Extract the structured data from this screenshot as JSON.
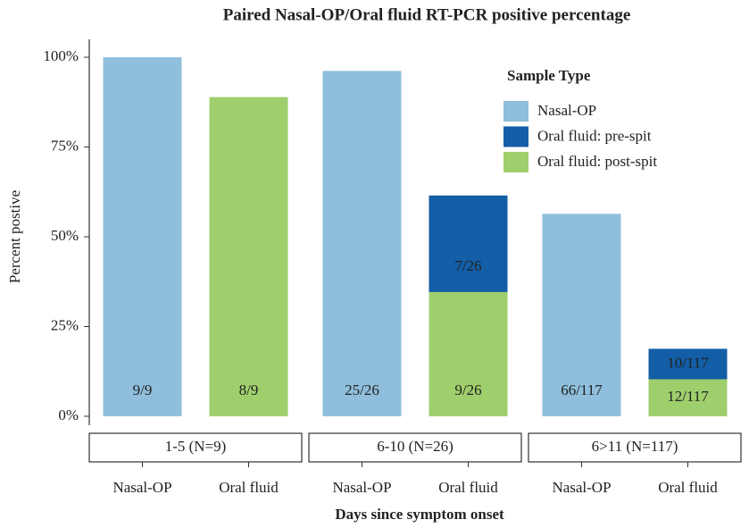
{
  "chart_data": {
    "type": "stacked_bar",
    "title": "Paired Nasal-OP/Oral fluid RT-PCR positive percentage",
    "y_label": "Percent postive",
    "x_label": "Days since symptom onset",
    "facets": [
      "1-5 (N=9)",
      "6-10 (N=26)",
      "6>11 (N=117)"
    ],
    "categories": [
      "Nasal-OP",
      "Oral fluid",
      "Nasal-OP",
      "Oral fluid",
      "Nasal-OP",
      "Oral fluid"
    ],
    "legend_title": "Sample Type",
    "legend": "top-right",
    "series": [
      {
        "name": "Nasal-OP",
        "color": "#8fbfdc",
        "values": [
          100,
          null,
          96.2,
          null,
          56.4,
          null
        ],
        "value_labels": [
          "9/9",
          null,
          "25/26",
          null,
          "66/117",
          null
        ]
      },
      {
        "name": "Oral fluid: pre-spit",
        "color": "#135ea6",
        "values": [
          null,
          null,
          null,
          26.9,
          null,
          8.5
        ],
        "value_labels": [
          null,
          null,
          null,
          "7/26",
          null,
          "10/117"
        ]
      },
      {
        "name": "Oral fluid: post-spit",
        "color": "#9fcf6c",
        "values": [
          null,
          88.9,
          null,
          34.6,
          null,
          10.3
        ],
        "value_labels": [
          null,
          "8/9",
          null,
          "9/26",
          null,
          "12/117"
        ]
      }
    ],
    "ylim": [
      -2.5,
      105
    ],
    "yticks": [
      {
        "value": 0,
        "label": "0%"
      },
      {
        "value": 25,
        "label": "25%"
      },
      {
        "value": 50,
        "label": "50%"
      },
      {
        "value": 75,
        "label": "75%"
      },
      {
        "value": 100,
        "label": "100%"
      }
    ]
  }
}
